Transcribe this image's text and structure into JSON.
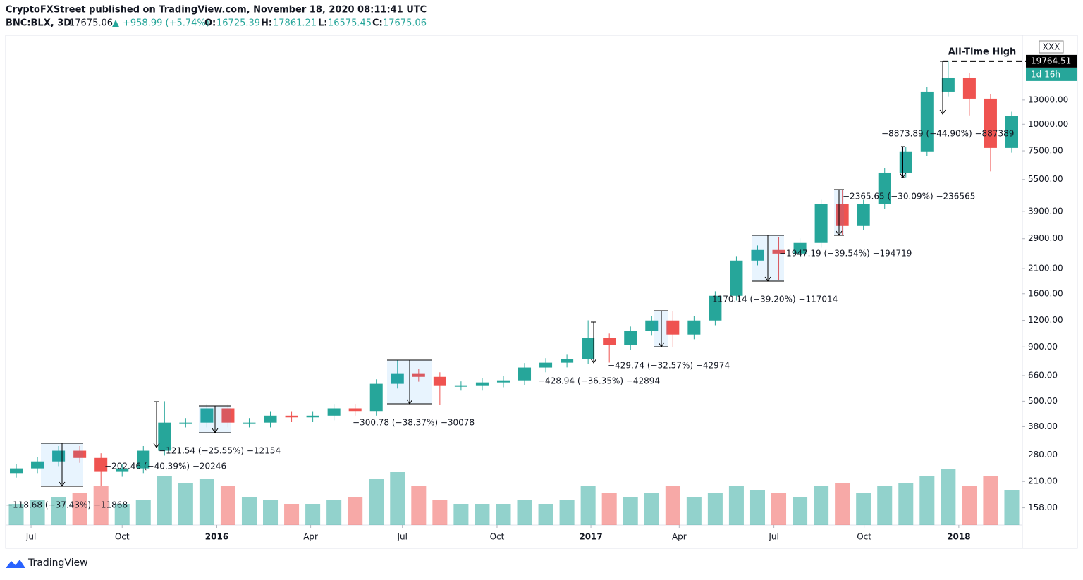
{
  "header": {
    "publisher": "CryptoFXStreet published on TradingView.com, November 18, 2020 08:11:41 UTC",
    "symbol": "BNC:BLX, 3D",
    "last": "17675.06",
    "arrow": "▲",
    "change": "+958.99 (+5.74%)",
    "o_label": "O:",
    "o": "16725.39",
    "h_label": "H:",
    "h": "17861.21",
    "l_label": "L:",
    "l": "16575.45",
    "c_label": "C:",
    "c": "17675.06"
  },
  "footer": {
    "logo": "TradingView"
  },
  "chart_data": {
    "type": "candlestick",
    "log_scale": true,
    "categories": [
      null,
      null,
      null,
      null,
      null,
      null,
      null,
      null,
      null,
      null,
      null,
      null,
      null,
      null,
      null,
      null,
      null,
      null,
      null,
      null,
      null,
      null,
      null,
      null,
      null,
      null,
      null,
      null,
      null,
      null,
      null,
      null,
      null,
      null,
      null,
      null,
      null,
      null,
      null,
      null,
      null,
      null,
      null,
      null,
      null,
      null,
      null,
      null
    ],
    "open": [
      230,
      242,
      261,
      293,
      271,
      233,
      242,
      293,
      397,
      397,
      463,
      397,
      397,
      428,
      420,
      428,
      463,
      450,
      604,
      677,
      651,
      590,
      590,
      613,
      627,
      720,
      759,
      788,
      990,
      917,
      1069,
      1198,
      1029,
      1198,
      1564,
      2289,
      2566,
      2469,
      2770,
      4205,
      3350,
      4205,
      5925,
      7458,
      14236,
      16574,
      13193,
      7742
    ],
    "high": [
      254,
      274,
      308,
      308,
      285,
      254,
      308,
      500,
      417,
      486,
      486,
      417,
      449,
      449,
      449,
      486,
      486,
      634,
      780,
      711,
      684,
      620,
      644,
      658,
      756,
      797,
      827,
      1200,
      1040,
      1122,
      1258,
      1330,
      1258,
      1642,
      2403,
      2694,
      2950,
      2909,
      4415,
      4900,
      4415,
      6221,
      7831,
      14948,
      19764,
      17403,
      13853,
      11447
    ],
    "low": [
      219,
      230,
      248,
      257,
      200,
      221,
      230,
      278,
      377,
      377,
      377,
      377,
      377,
      399,
      399,
      407,
      428,
      428,
      574,
      618,
      480,
      561,
      561,
      582,
      596,
      684,
      721,
      749,
      760,
      871,
      1016,
      900,
      978,
      1138,
      1486,
      2175,
      1850,
      2346,
      2632,
      3000,
      3183,
      3995,
      5629,
      7085,
      13524,
      11000,
      6000,
      7355
    ],
    "close": [
      242,
      261,
      293,
      271,
      233,
      242,
      293,
      397,
      397,
      463,
      397,
      397,
      428,
      420,
      428,
      463,
      450,
      604,
      677,
      651,
      590,
      590,
      613,
      627,
      720,
      759,
      788,
      990,
      917,
      1069,
      1198,
      1029,
      1198,
      1564,
      2289,
      2566,
      2469,
      2770,
      4205,
      3350,
      4205,
      5925,
      7458,
      14236,
      16574,
      13193,
      7742,
      10902
    ],
    "volume": [
      30,
      35,
      40,
      45,
      55,
      30,
      35,
      70,
      60,
      65,
      55,
      40,
      35,
      30,
      30,
      35,
      40,
      65,
      75,
      55,
      35,
      30,
      30,
      30,
      35,
      30,
      35,
      55,
      45,
      40,
      45,
      55,
      40,
      45,
      55,
      50,
      45,
      40,
      55,
      60,
      45,
      55,
      60,
      70,
      80,
      55,
      70,
      50
    ],
    "volume_lim": [
      0,
      100
    ],
    "up_color": "#26a69a",
    "down_color": "#ef5350",
    "ylim": [
      102,
      26180
    ],
    "yticks": [
      {
        "value": 158,
        "label": "158.00"
      },
      {
        "value": 210,
        "label": "210.00"
      },
      {
        "value": 280,
        "label": "280.00"
      },
      {
        "value": 380,
        "label": "380.00"
      },
      {
        "value": 500,
        "label": "500.00"
      },
      {
        "value": 660,
        "label": "660.00"
      },
      {
        "value": 900,
        "label": "900.00"
      },
      {
        "value": 1200,
        "label": "1200.00"
      },
      {
        "value": 1600,
        "label": "1600.00"
      },
      {
        "value": 2100,
        "label": "2100.00"
      },
      {
        "value": 2900,
        "label": "2900.00"
      },
      {
        "value": 3900,
        "label": "3900.00"
      },
      {
        "value": 5500,
        "label": "5500.00"
      },
      {
        "value": 7500,
        "label": "7500.00"
      },
      {
        "value": 10000,
        "label": "10000.00"
      },
      {
        "value": 13000,
        "label": "13000.00"
      }
    ],
    "xticks": [
      {
        "value": 0.7,
        "label": "Jul"
      },
      {
        "value": 5,
        "label": "Oct"
      },
      {
        "value": 9.47,
        "label": "2016"
      },
      {
        "value": 13.9,
        "label": "Apr"
      },
      {
        "value": 18.23,
        "label": "Jul"
      },
      {
        "value": 22.7,
        "label": "Oct"
      },
      {
        "value": 27.13,
        "label": "2017"
      },
      {
        "value": 31.3,
        "label": "Apr"
      },
      {
        "value": 35.77,
        "label": "Jul"
      },
      {
        "value": 40.03,
        "label": "Oct"
      },
      {
        "value": 44.5,
        "label": "2018"
      }
    ],
    "ath": {
      "value": 19764.51,
      "label": "19764.51",
      "text": "All-Time High",
      "countdown": "1d 16h",
      "tag": "XXX"
    },
    "annotations": [
      "−118.68 (−37.43%) −11868",
      "−202.46 (−40.39%) −20246",
      "−121.54 (−25.55%) −12154",
      "−300.78 (−38.37%) −30078",
      "−428.94 (−36.35%) −42894",
      "−429.74 (−32.57%) −42974",
      "1170.14 (−39.20%) −117014",
      "−1947.19 (−39.54%) −194719",
      "−2365.65 (−30.09%) −236565",
      "−8873.89 (−44.90%) −887389"
    ]
  }
}
